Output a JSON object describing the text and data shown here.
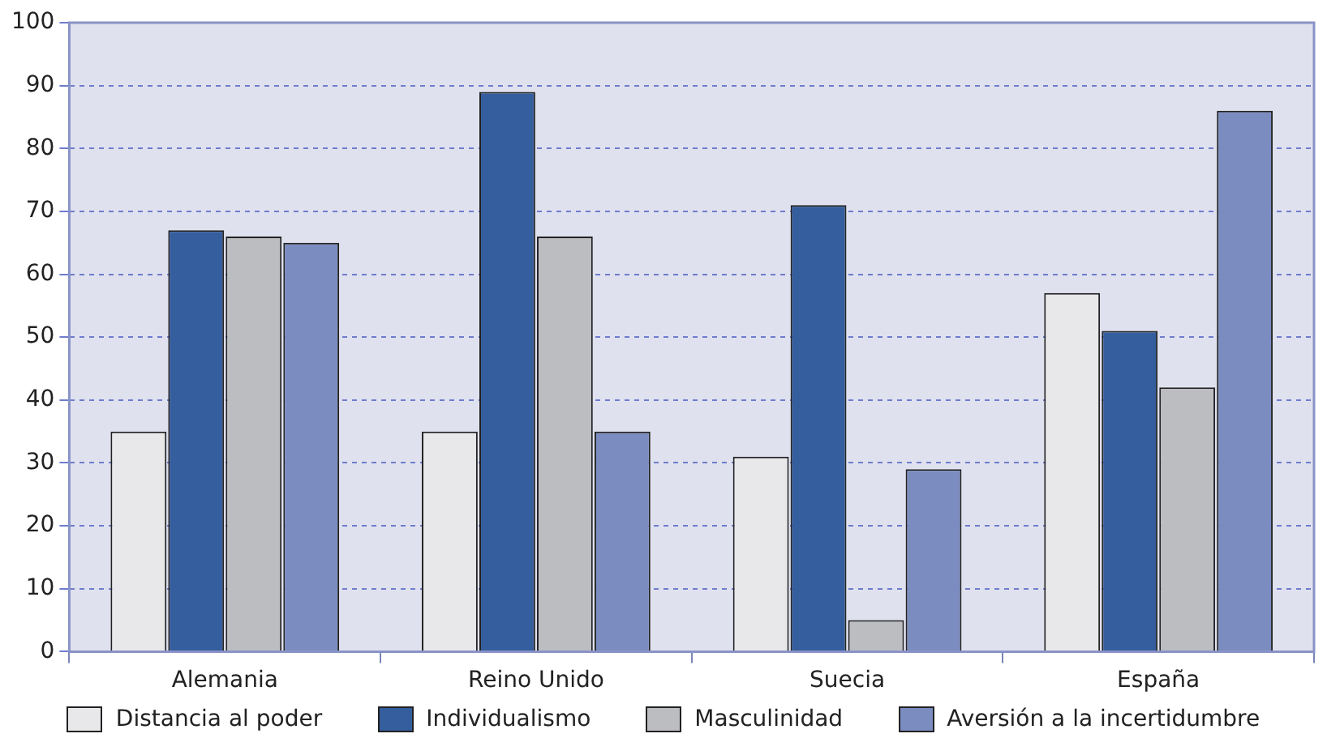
{
  "chart_data": {
    "type": "bar",
    "categories": [
      "Alemania",
      "Reino Unido",
      "Suecia",
      "España"
    ],
    "series": [
      {
        "name": "Distancia al poder",
        "color": "#e8e8ea",
        "values": [
          35,
          35,
          31,
          57
        ]
      },
      {
        "name": "Individualismo",
        "color": "#355e9e",
        "values": [
          67,
          89,
          71,
          51
        ]
      },
      {
        "name": "Masculinidad",
        "color": "#bcbdc1",
        "values": [
          66,
          66,
          5,
          42
        ]
      },
      {
        "name": "Aversión a la incertidumbre",
        "color": "#7b8cc0",
        "values": [
          65,
          35,
          29,
          86
        ]
      }
    ],
    "ylim": [
      0,
      100
    ],
    "yticks": [
      0,
      10,
      20,
      30,
      40,
      50,
      60,
      70,
      80,
      90,
      100
    ],
    "grid": "y",
    "legend": "bottom"
  }
}
